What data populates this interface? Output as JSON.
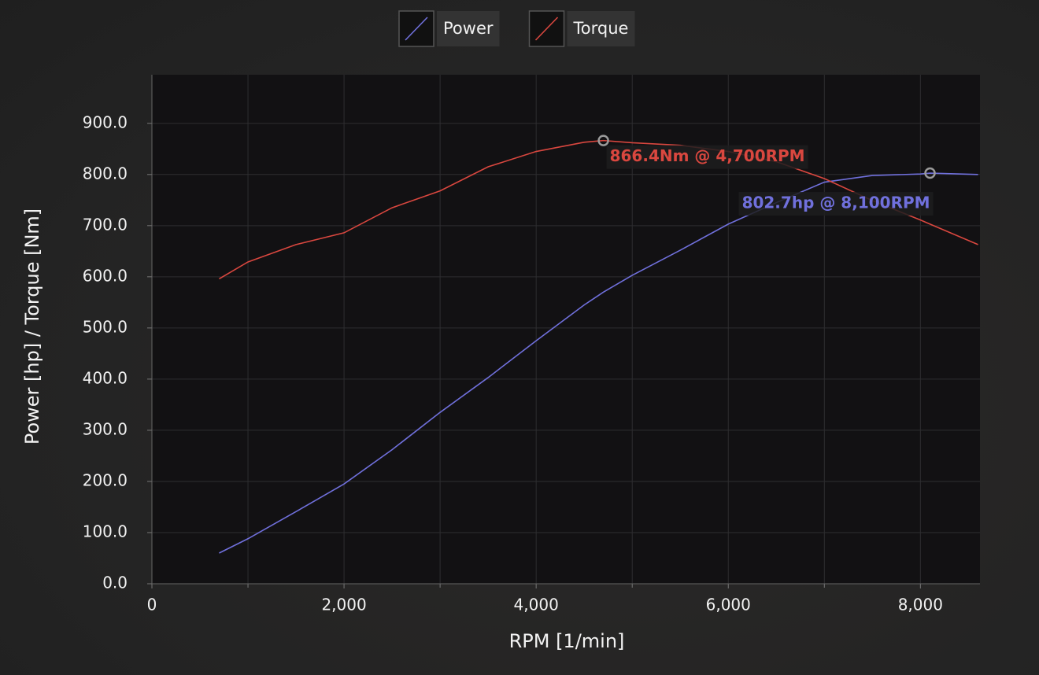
{
  "chart_data": {
    "type": "line",
    "x_label": "RPM [1/min]",
    "y_label": "Power [hp] / Torque [Nm]",
    "x": [
      700,
      1000,
      1500,
      2000,
      2500,
      3000,
      3500,
      4000,
      4500,
      4700,
      5000,
      5500,
      6000,
      6500,
      7000,
      7500,
      8000,
      8100,
      8600
    ],
    "series": [
      {
        "name": "Power",
        "color": "#7070dc",
        "values": [
          60,
          88,
          141,
          195,
          262,
          335,
          403,
          475,
          545,
          570,
          603,
          652,
          703,
          745,
          785,
          798,
          801,
          802.7,
          800
        ],
        "peak": {
          "x": 8100,
          "value": 802.7,
          "label": "802.7hp @ 8,100RPM"
        }
      },
      {
        "name": "Torque",
        "color": "#d9473f",
        "values": [
          596,
          629,
          663,
          686,
          735,
          768,
          815,
          845,
          863,
          866.4,
          862,
          857,
          845,
          825,
          792,
          749,
          711,
          703,
          663
        ],
        "peak": {
          "x": 4700,
          "value": 866.4,
          "label": "866.4Nm @ 4,700RPM"
        }
      }
    ],
    "xlim": [
      0,
      8620
    ],
    "xticks": [
      0,
      {
        "value": 2000,
        "label": "2,000"
      },
      {
        "value": 4000,
        "label": "4,000"
      },
      {
        "value": 6000,
        "label": "6,000"
      },
      {
        "value": 8000,
        "label": "8,000"
      }
    ],
    "xminor": [
      1000,
      3000,
      5000,
      7000
    ],
    "ylim": [
      0,
      995
    ],
    "yticks": [
      {
        "value": 0,
        "label": "0.0"
      },
      {
        "value": 100,
        "label": "100.0"
      },
      {
        "value": 200,
        "label": "200.0"
      },
      {
        "value": 300,
        "label": "300.0"
      },
      {
        "value": 400,
        "label": "400.0"
      },
      {
        "value": 500,
        "label": "500.0"
      },
      {
        "value": 600,
        "label": "600.0"
      },
      {
        "value": 700,
        "label": "700.0"
      },
      {
        "value": 800,
        "label": "800.0"
      },
      {
        "value": 900,
        "label": "900.0"
      }
    ],
    "grid": true
  }
}
